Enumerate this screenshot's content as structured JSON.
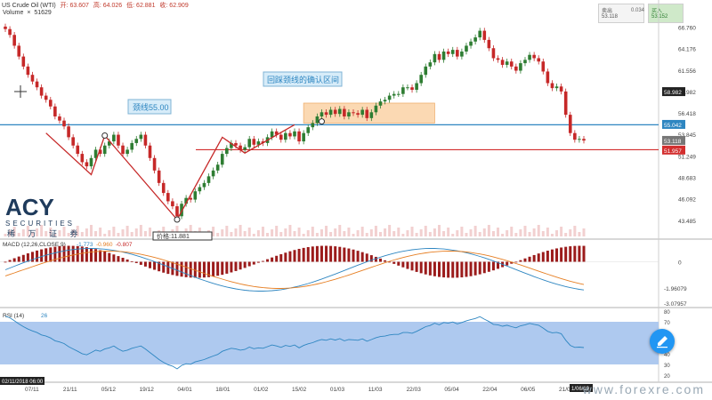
{
  "header": {
    "symbol": "US Crude Oil (WTI)",
    "open": "开: 63.607",
    "high": "高: 64.026",
    "low": "低: 62.881",
    "close": "收: 62.909",
    "volume_label": "Volume",
    "volume_value": "51629"
  },
  "trade": {
    "sell_label": "卖出",
    "sell_price": "53.118",
    "spread": "0.034",
    "buy_label": "买入",
    "buy_price": "53.152"
  },
  "logo": {
    "brand": "ACY",
    "line1": "SECURITIES",
    "line2": "稀 万 证 券"
  },
  "watermark": "www.forexre.com",
  "colors": {
    "up": "#2e7d32",
    "down": "#c62828",
    "blue_line": "#2e86c1",
    "red_line": "#d32f2f",
    "zone": "#fbd9b3",
    "rsi_band": "#aec9ef"
  },
  "chart_data": [
    {
      "type": "candlestick",
      "title": "US Crude Oil (WTI)",
      "x_ticks": [
        "07/11",
        "21/11",
        "05/12",
        "19/12",
        "04/01",
        "18/01",
        "01/02",
        "15/02",
        "01/03",
        "11/03",
        "22/03",
        "05/04",
        "22/04",
        "06/05",
        "21/05"
      ],
      "y_ticks": [
        66.76,
        64.176,
        61.556,
        58.982,
        56.418,
        53.845,
        51.249,
        48.683,
        46.092,
        43.485
      ],
      "ylim": [
        42.0,
        68.5
      ],
      "close": [
        66.5,
        65.8,
        64.5,
        63.2,
        62.0,
        61.0,
        60.2,
        59.5,
        58.5,
        58.0,
        57.2,
        56.0,
        55.5,
        54.8,
        53.5,
        52.5,
        51.5,
        50.5,
        50.0,
        51.0,
        52.0,
        51.5,
        52.5,
        53.0,
        53.8,
        52.5,
        51.5,
        52.0,
        52.8,
        53.3,
        53.8,
        52.5,
        51.0,
        49.5,
        48.0,
        46.8,
        45.8,
        45.2,
        44.0,
        45.5,
        46.2,
        46.0,
        47.0,
        47.5,
        48.0,
        48.8,
        49.5,
        50.2,
        51.5,
        52.2,
        52.8,
        52.5,
        52.0,
        52.3,
        53.3,
        52.6,
        53.0,
        52.8,
        53.5,
        54.2,
        53.8,
        53.2,
        54.0,
        53.6,
        54.2,
        53.0,
        54.0,
        54.7,
        55.2,
        56.0,
        56.5,
        56.2,
        56.8,
        56.3,
        56.9,
        56.0,
        56.5,
        56.4,
        56.2,
        56.8,
        55.8,
        56.5,
        57.3,
        57.8,
        58.0,
        58.5,
        58.7,
        58.7,
        59.5,
        59.5,
        59.2,
        60.0,
        61.0,
        62.0,
        62.5,
        63.5,
        62.8,
        63.8,
        63.5,
        64.0,
        63.2,
        63.8,
        64.5,
        65.0,
        65.5,
        66.3,
        65.2,
        64.2,
        63.0,
        62.8,
        62.2,
        62.6,
        62.0,
        61.5,
        62.4,
        62.8,
        63.4,
        63.0,
        62.6,
        61.4,
        60.0,
        59.4,
        59.6,
        59.0,
        56.2,
        54.0,
        53.2,
        53.3,
        53.1
      ],
      "annotations": [
        "颈线55.00",
        "回踩颈线的确认区间",
        "价格:11.881"
      ],
      "price_labels": [
        {
          "value": "58.982",
          "color": "#222222"
        },
        {
          "value": "55.042",
          "color": "#2e86c1"
        },
        {
          "value": "53.118",
          "color": "#777777"
        },
        {
          "value": "51.957",
          "color": "#d32f2f"
        }
      ],
      "hlines": [
        {
          "name": "颈线",
          "value": 55.0
        },
        {
          "name": "support",
          "value": 52.0
        }
      ],
      "zone": {
        "x_start_index": 66,
        "x_end_index": 95,
        "y_low": 55.2,
        "y_high": 57.6
      }
    },
    {
      "type": "bar",
      "title": "MACD (12,26,CLOSE,9)",
      "legend": [
        "-1.773",
        "-0.960",
        "-0.807"
      ],
      "y_ticks": [
        "0",
        "-1.96079",
        "-3.07957"
      ],
      "ylim": [
        -3.3,
        1.5
      ]
    },
    {
      "type": "line",
      "title": "RSI (14)",
      "legend": [
        "26"
      ],
      "y_ticks": [
        "80",
        "70",
        "60",
        "50",
        "40",
        "30",
        "20"
      ],
      "ylim": [
        15,
        80
      ],
      "band": [
        30,
        70
      ]
    }
  ],
  "axis": {
    "date_marker": "02/11/2018 06:00",
    "current_marker": "1/06/19"
  }
}
